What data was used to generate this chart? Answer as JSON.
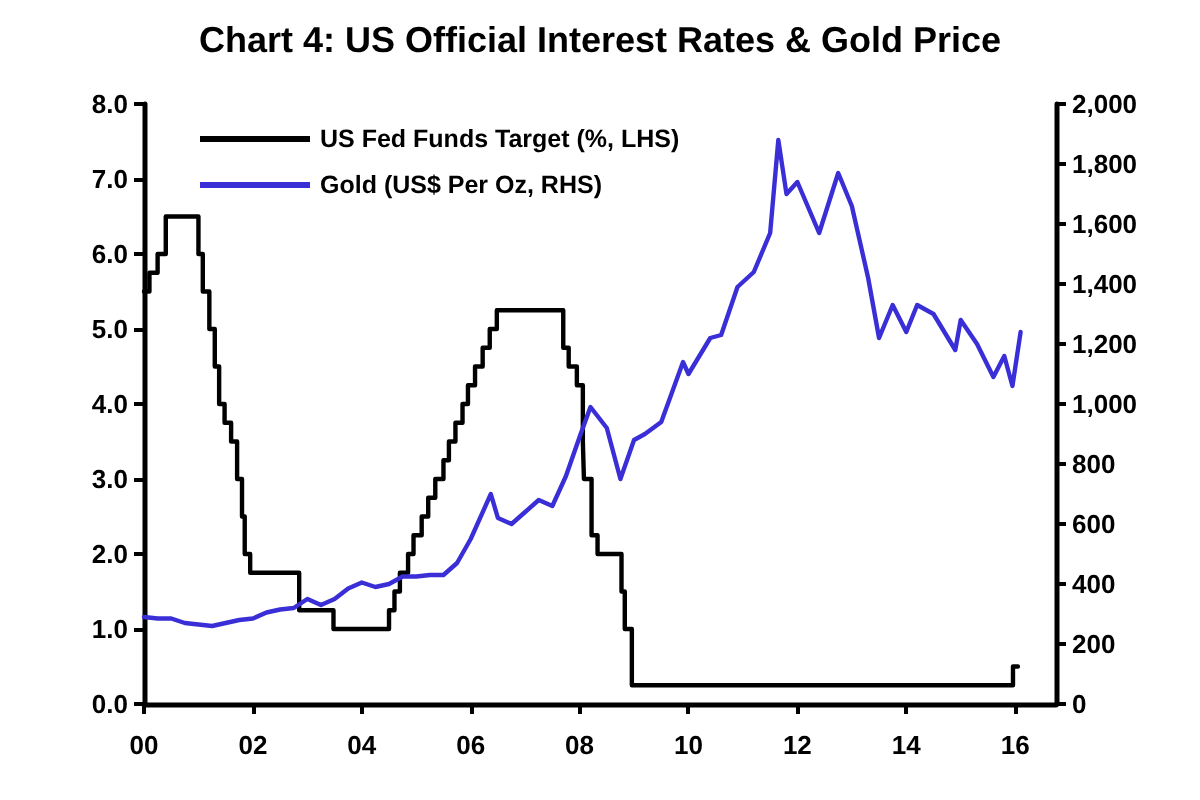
{
  "chart_data": {
    "type": "line",
    "title": "Chart 4: US Official Interest Rates & Gold Price",
    "xlim": [
      2000,
      2016.75
    ],
    "xticks": [
      {
        "value": 2000,
        "label": "00"
      },
      {
        "value": 2002,
        "label": "02"
      },
      {
        "value": 2004,
        "label": "04"
      },
      {
        "value": 2006,
        "label": "06"
      },
      {
        "value": 2008,
        "label": "08"
      },
      {
        "value": 2010,
        "label": "10"
      },
      {
        "value": 2012,
        "label": "12"
      },
      {
        "value": 2014,
        "label": "14"
      },
      {
        "value": 2016,
        "label": "16"
      }
    ],
    "ylim": [
      0,
      8
    ],
    "yticks": [
      {
        "value": 0,
        "label": "0.0"
      },
      {
        "value": 1,
        "label": "1.0"
      },
      {
        "value": 2,
        "label": "2.0"
      },
      {
        "value": 3,
        "label": "3.0"
      },
      {
        "value": 4,
        "label": "4.0"
      },
      {
        "value": 5,
        "label": "5.0"
      },
      {
        "value": 6,
        "label": "6.0"
      },
      {
        "value": 7,
        "label": "7.0"
      },
      {
        "value": 8,
        "label": "8.0"
      }
    ],
    "y2lim": [
      0,
      2000
    ],
    "y2ticks": [
      0,
      200,
      400,
      600,
      800,
      {
        "value": 1000,
        "label": "1,000"
      },
      {
        "value": 1200,
        "label": "1,200"
      },
      {
        "value": 1400,
        "label": "1,400"
      },
      {
        "value": 1600,
        "label": "1,600"
      },
      {
        "value": 1800,
        "label": "1,800"
      },
      {
        "value": 2000,
        "label": "2,000"
      }
    ],
    "grid": false,
    "legend": "top left",
    "marker": "none",
    "series": [
      {
        "name": "US Fed Funds Target (%, LHS)",
        "type": "step",
        "color": "#000000",
        "x": [
          2000.0,
          2000.1,
          2000.25,
          2000.4,
          2001.0,
          2001.08,
          2001.2,
          2001.3,
          2001.38,
          2001.48,
          2001.6,
          2001.71,
          2001.8,
          2001.85,
          2001.95,
          2002.85,
          2003.48,
          2004.5,
          2004.6,
          2004.7,
          2004.85,
          2004.95,
          2005.1,
          2005.22,
          2005.35,
          2005.5,
          2005.6,
          2005.72,
          2005.85,
          2005.95,
          2006.08,
          2006.22,
          2006.35,
          2006.48,
          2007.7,
          2007.8,
          2007.95,
          2008.06,
          2008.08,
          2008.22,
          2008.33,
          2008.77,
          2008.83,
          2008.96,
          2015.96,
          2016.05
        ],
        "values": [
          5.5,
          5.75,
          6.0,
          6.5,
          6.0,
          5.5,
          5.0,
          4.5,
          4.0,
          3.75,
          3.5,
          3.0,
          2.5,
          2.0,
          1.75,
          1.25,
          1.0,
          1.25,
          1.5,
          1.75,
          2.0,
          2.25,
          2.5,
          2.75,
          3.0,
          3.25,
          3.5,
          3.75,
          4.0,
          4.25,
          4.5,
          4.75,
          5.0,
          5.25,
          4.75,
          4.5,
          4.25,
          3.5,
          3.0,
          2.25,
          2.0,
          1.5,
          1.0,
          0.25,
          0.5,
          0.5
        ]
      },
      {
        "name": "Gold (US$ Per Oz, RHS)",
        "axis": "y2",
        "color": "#3a2fd6",
        "x": [
          2000.0,
          2000.25,
          2000.5,
          2000.75,
          2001.0,
          2001.25,
          2001.5,
          2001.75,
          2002.0,
          2002.25,
          2002.5,
          2002.75,
          2003.0,
          2003.25,
          2003.5,
          2003.75,
          2004.0,
          2004.25,
          2004.5,
          2004.75,
          2005.0,
          2005.25,
          2005.5,
          2005.75,
          2006.0,
          2006.37,
          2006.5,
          2006.75,
          2007.0,
          2007.25,
          2007.5,
          2007.75,
          2008.0,
          2008.2,
          2008.5,
          2008.75,
          2009.0,
          2009.2,
          2009.5,
          2009.9,
          2010.0,
          2010.4,
          2010.6,
          2010.9,
          2011.2,
          2011.5,
          2011.65,
          2011.8,
          2012.0,
          2012.4,
          2012.75,
          2013.0,
          2013.3,
          2013.5,
          2013.75,
          2014.0,
          2014.2,
          2014.5,
          2014.9,
          2015.0,
          2015.3,
          2015.6,
          2015.8,
          2015.95,
          2016.1
        ],
        "values": [
          290,
          285,
          285,
          270,
          265,
          260,
          270,
          280,
          285,
          305,
          315,
          320,
          350,
          330,
          350,
          385,
          405,
          390,
          400,
          425,
          425,
          430,
          430,
          470,
          550,
          700,
          620,
          600,
          640,
          680,
          660,
          760,
          890,
          990,
          920,
          750,
          880,
          900,
          940,
          1140,
          1100,
          1220,
          1230,
          1390,
          1440,
          1570,
          1880,
          1700,
          1740,
          1570,
          1770,
          1660,
          1420,
          1220,
          1330,
          1240,
          1330,
          1300,
          1180,
          1280,
          1200,
          1090,
          1160,
          1060,
          1240
        ]
      }
    ]
  }
}
